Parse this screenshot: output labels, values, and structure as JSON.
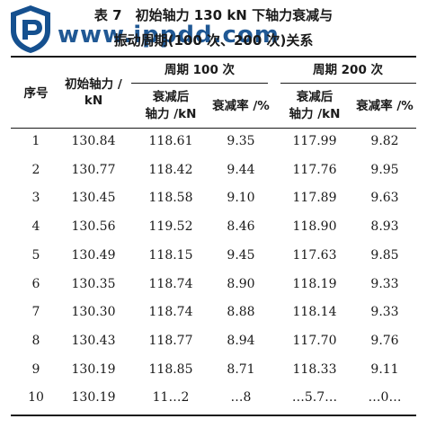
{
  "caption": {
    "line1": "表 7　初始轴力 130 kN 下轴力衰减与",
    "line2": "振动周期(100 次、200 次)关系"
  },
  "watermark": {
    "text": "www.ippdd.com"
  },
  "table": {
    "headers": {
      "index": "序号",
      "initial_force_l1": "初始轴力 /",
      "initial_force_l2": "kN",
      "period_100": "周期 100 次",
      "period_200": "周期 200 次",
      "after_force_l1": "衰减后",
      "after_force_l2": "轴力 /kN",
      "rate": "衰减率 /%"
    },
    "rows": [
      {
        "no": "1",
        "initial": "130.84",
        "f100": "118.61",
        "r100": "9.35",
        "f200": "117.99",
        "r200": "9.82"
      },
      {
        "no": "2",
        "initial": "130.77",
        "f100": "118.42",
        "r100": "9.44",
        "f200": "117.76",
        "r200": "9.95"
      },
      {
        "no": "3",
        "initial": "130.45",
        "f100": "118.58",
        "r100": "9.10",
        "f200": "117.89",
        "r200": "9.63"
      },
      {
        "no": "4",
        "initial": "130.56",
        "f100": "119.52",
        "r100": "8.46",
        "f200": "118.90",
        "r200": "8.93"
      },
      {
        "no": "5",
        "initial": "130.49",
        "f100": "118.15",
        "r100": "9.45",
        "f200": "117.63",
        "r200": "9.85"
      },
      {
        "no": "6",
        "initial": "130.35",
        "f100": "118.74",
        "r100": "8.90",
        "f200": "118.19",
        "r200": "9.33"
      },
      {
        "no": "7",
        "initial": "130.30",
        "f100": "118.74",
        "r100": "8.88",
        "f200": "118.14",
        "r200": "9.33"
      },
      {
        "no": "8",
        "initial": "130.43",
        "f100": "118.77",
        "r100": "8.94",
        "f200": "117.70",
        "r200": "9.76"
      },
      {
        "no": "9",
        "initial": "130.19",
        "f100": "118.85",
        "r100": "8.71",
        "f200": "118.33",
        "r200": "9.11"
      },
      {
        "no": "10",
        "initial": "130.19",
        "f100": "11…2",
        "r100": "…8",
        "f200": "…5.7…",
        "r200": "…0…"
      }
    ]
  }
}
